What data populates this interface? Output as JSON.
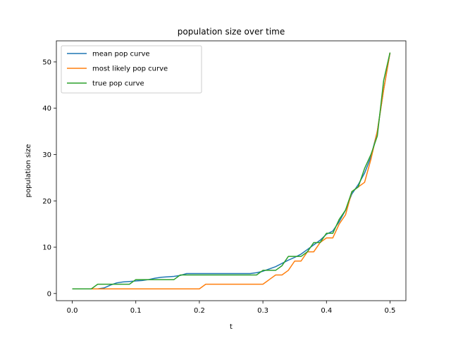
{
  "chart_data": {
    "type": "line",
    "title": "population size over time",
    "xlabel": "t",
    "ylabel": "population size",
    "xlim": [
      -0.025,
      0.525
    ],
    "ylim": [
      -1.55,
      54.55
    ],
    "xticks": [
      0.0,
      0.1,
      0.2,
      0.3,
      0.4,
      0.5
    ],
    "xtick_labels": [
      "0.0",
      "0.1",
      "0.2",
      "0.3",
      "0.4",
      "0.5"
    ],
    "yticks": [
      0,
      10,
      20,
      30,
      40,
      50
    ],
    "ytick_labels": [
      "0",
      "10",
      "20",
      "30",
      "40",
      "50"
    ],
    "grid": false,
    "legend_position": "top-left",
    "x": [
      0.0,
      0.01,
      0.02,
      0.03,
      0.04,
      0.05,
      0.06,
      0.07,
      0.08,
      0.09,
      0.1,
      0.11,
      0.12,
      0.13,
      0.14,
      0.15,
      0.16,
      0.17,
      0.18,
      0.19,
      0.2,
      0.21,
      0.22,
      0.23,
      0.24,
      0.25,
      0.26,
      0.27,
      0.28,
      0.29,
      0.3,
      0.31,
      0.32,
      0.33,
      0.34,
      0.35,
      0.36,
      0.37,
      0.38,
      0.39,
      0.4,
      0.41,
      0.42,
      0.43,
      0.44,
      0.45,
      0.46,
      0.47,
      0.48,
      0.49,
      0.5
    ],
    "series": [
      {
        "name": "mean pop curve",
        "color": "#1f77b4",
        "values": [
          1.0,
          1.0,
          1.0,
          1.0,
          1.0,
          1.2,
          1.8,
          2.3,
          2.5,
          2.6,
          2.7,
          2.8,
          3.0,
          3.3,
          3.5,
          3.6,
          3.7,
          3.9,
          4.3,
          4.3,
          4.3,
          4.3,
          4.3,
          4.3,
          4.3,
          4.3,
          4.3,
          4.3,
          4.3,
          4.5,
          4.8,
          5.3,
          5.8,
          6.5,
          7.2,
          7.8,
          8.5,
          9.5,
          10.5,
          11.5,
          12.8,
          13.5,
          15.5,
          18.0,
          21.5,
          23.5,
          26.0,
          29.5,
          35.0,
          44.0,
          52.0
        ]
      },
      {
        "name": "most likely pop curve",
        "color": "#ff7f0e",
        "values": [
          1,
          1,
          1,
          1,
          1,
          1,
          1,
          1,
          1,
          1,
          1,
          1,
          1,
          1,
          1,
          1,
          1,
          1,
          1,
          1,
          1,
          2,
          2,
          2,
          2,
          2,
          2,
          2,
          2,
          2,
          2,
          3,
          4,
          4,
          5,
          7,
          7,
          9,
          9,
          11,
          12,
          12,
          15,
          17,
          22,
          23,
          24,
          29,
          35,
          44,
          52
        ]
      },
      {
        "name": "true pop curve",
        "color": "#2ca02c",
        "values": [
          1,
          1,
          1,
          1,
          2,
          2,
          2,
          2,
          2,
          2,
          3,
          3,
          3,
          3,
          3,
          3,
          3,
          4,
          4,
          4,
          4,
          4,
          4,
          4,
          4,
          4,
          4,
          4,
          4,
          4,
          5,
          5,
          5,
          6,
          8,
          8,
          8,
          9,
          11,
          11,
          13,
          13,
          16,
          18,
          22,
          23,
          27,
          30,
          34,
          46,
          52
        ]
      }
    ]
  }
}
